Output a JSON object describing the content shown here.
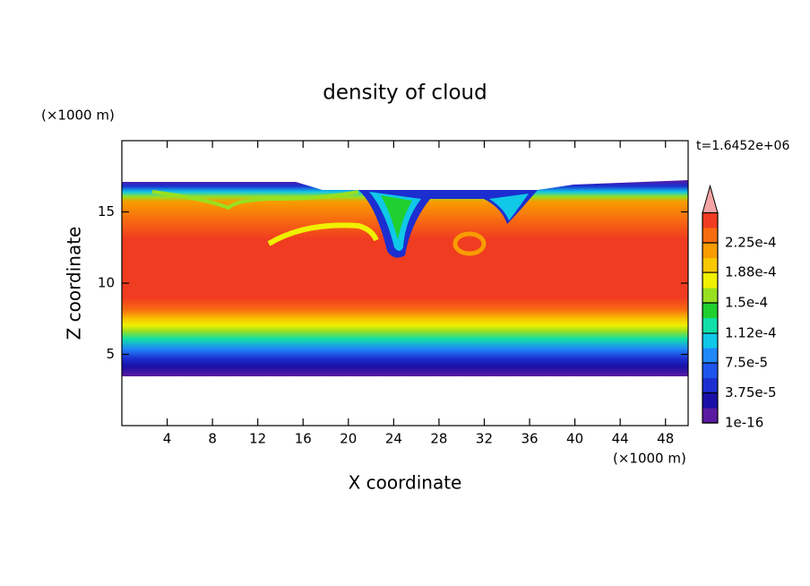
{
  "chart_data": {
    "type": "contour",
    "title": "density of cloud",
    "xlabel": "X coordinate",
    "ylabel": "Z coordinate",
    "x_unit": "(×1000 m)",
    "y_unit": "(×1000 m)",
    "annotation": "t=1.6452e+06",
    "xlim": [
      0,
      50
    ],
    "xticks": [
      4,
      8,
      12,
      16,
      20,
      24,
      28,
      32,
      36,
      40,
      44,
      48
    ],
    "ylim": [
      0,
      20
    ],
    "yticks": [
      5,
      10,
      15
    ],
    "colorbar": {
      "clim": [
        1e-16,
        0.0002625
      ],
      "ticks": [
        {
          "value": 1e-16,
          "label": "1e-16"
        },
        {
          "value": 3.75e-05,
          "label": "3.75e-5"
        },
        {
          "value": 7.5e-05,
          "label": "7.5e-5"
        },
        {
          "value": 0.000112,
          "label": "1.12e-4"
        },
        {
          "value": 0.00015,
          "label": "1.5e-4"
        },
        {
          "value": 0.000188,
          "label": "1.88e-4"
        },
        {
          "value": 0.000225,
          "label": "2.25e-4"
        }
      ],
      "colors": [
        "#5a1aa0",
        "#1a10a8",
        "#1c2ed0",
        "#1e55ec",
        "#2088f8",
        "#10c8e8",
        "#10e0a8",
        "#20d030",
        "#98e020",
        "#f0f000",
        "#f8c800",
        "#f89c00",
        "#f86c10",
        "#f03c20"
      ],
      "extend_color": "#f4a4a4"
    }
  }
}
